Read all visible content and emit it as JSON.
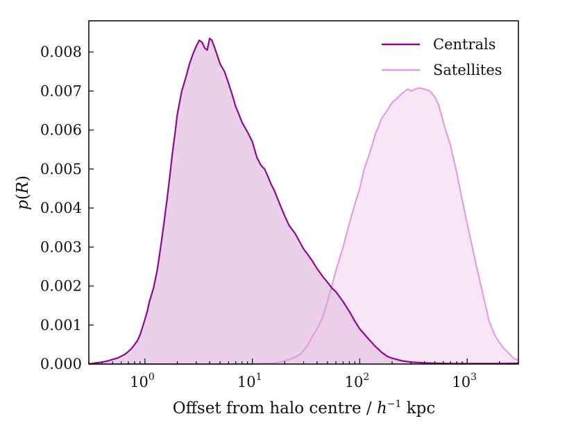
{
  "chart_data": {
    "type": "area",
    "xscale": "log",
    "xlim": [
      0.3,
      3000
    ],
    "ylim": [
      0,
      0.0088
    ],
    "xlabel": "Offset from halo centre / h⁻¹ kpc",
    "xlabel_parts": {
      "prefix": "Offset from halo centre / ",
      "var": "h",
      "exp": "−1",
      "suffix": " kpc"
    },
    "ylabel": "p(R)",
    "ylabel_parts": {
      "p": "p",
      "open": "(",
      "var": "R",
      "close": ")"
    },
    "yticks": [
      {
        "value": 0.0,
        "label": "0.000"
      },
      {
        "value": 0.001,
        "label": "0.001"
      },
      {
        "value": 0.002,
        "label": "0.002"
      },
      {
        "value": 0.003,
        "label": "0.003"
      },
      {
        "value": 0.004,
        "label": "0.004"
      },
      {
        "value": 0.005,
        "label": "0.005"
      },
      {
        "value": 0.006,
        "label": "0.006"
      },
      {
        "value": 0.007,
        "label": "0.007"
      },
      {
        "value": 0.008,
        "label": "0.008"
      }
    ],
    "xticks": [
      {
        "value": 1,
        "base": "10",
        "exp": "0"
      },
      {
        "value": 10,
        "base": "10",
        "exp": "1"
      },
      {
        "value": 100,
        "base": "10",
        "exp": "2"
      },
      {
        "value": 1000,
        "base": "10",
        "exp": "3"
      }
    ],
    "legend_position": "top-right",
    "series": [
      {
        "name": "Centrals",
        "color": "#8b0a8b",
        "fill": "#e8c8e5",
        "x": [
          0.3,
          0.35,
          0.4,
          0.45,
          0.5,
          0.55,
          0.6,
          0.65,
          0.7,
          0.75,
          0.8,
          0.85,
          0.9,
          0.95,
          1.0,
          1.05,
          1.1,
          1.2,
          1.3,
          1.4,
          1.5,
          1.6,
          1.7,
          1.8,
          1.9,
          2.0,
          2.2,
          2.4,
          2.6,
          2.8,
          3.0,
          3.2,
          3.4,
          3.6,
          3.8,
          4.0,
          4.2,
          4.4,
          4.6,
          5.0,
          5.5,
          6.0,
          6.5,
          7.0,
          7.5,
          8.0,
          9.0,
          10,
          11,
          12,
          13,
          14,
          15,
          16,
          18,
          20,
          22,
          25,
          28,
          30,
          33,
          36,
          40,
          45,
          50,
          55,
          60,
          70,
          80,
          90,
          100,
          120,
          140,
          160,
          180,
          200,
          250,
          300,
          400,
          500,
          700,
          1000,
          1500,
          2000,
          3000
        ],
        "y": [
          0.0,
          3e-05,
          5e-05,
          8e-05,
          0.00012,
          0.00015,
          0.0002,
          0.00025,
          0.00032,
          0.0004,
          0.0005,
          0.0006,
          0.00075,
          0.00095,
          0.00115,
          0.00135,
          0.0016,
          0.00195,
          0.0024,
          0.003,
          0.0036,
          0.0042,
          0.0048,
          0.0054,
          0.0059,
          0.0064,
          0.007,
          0.00735,
          0.0077,
          0.00795,
          0.00815,
          0.0083,
          0.00825,
          0.0081,
          0.00805,
          0.00835,
          0.0083,
          0.00815,
          0.008,
          0.0077,
          0.0075,
          0.0072,
          0.0069,
          0.0066,
          0.0064,
          0.0062,
          0.00595,
          0.0057,
          0.0053,
          0.0051,
          0.005,
          0.0048,
          0.0046,
          0.00445,
          0.0041,
          0.0038,
          0.00355,
          0.00335,
          0.0031,
          0.00295,
          0.0028,
          0.00265,
          0.00245,
          0.00225,
          0.0021,
          0.00195,
          0.00185,
          0.0016,
          0.00135,
          0.0011,
          0.0009,
          0.00065,
          0.00045,
          0.0003,
          0.0002,
          0.00015,
          8e-05,
          5e-05,
          3e-05,
          2e-05,
          1e-05,
          1e-05,
          1e-05,
          1e-05,
          2e-05
        ]
      },
      {
        "name": "Satellites",
        "color": "#e09ee0",
        "fill": "#f8e6f6",
        "x": [
          0.3,
          10,
          15,
          18,
          20,
          22,
          25,
          28,
          30,
          33,
          36,
          40,
          45,
          50,
          55,
          60,
          70,
          80,
          90,
          100,
          110,
          120,
          130,
          140,
          150,
          160,
          180,
          200,
          220,
          250,
          280,
          300,
          330,
          360,
          400,
          450,
          500,
          550,
          600,
          700,
          800,
          900,
          1000,
          1200,
          1400,
          1600,
          1800,
          2000,
          2200,
          2500,
          2700,
          3000
        ],
        "y": [
          0.0,
          0.0,
          2e-05,
          5e-05,
          8e-05,
          0.00012,
          0.00018,
          0.00025,
          0.00035,
          0.0005,
          0.0007,
          0.0009,
          0.0012,
          0.0016,
          0.002,
          0.0024,
          0.003,
          0.0036,
          0.0041,
          0.0045,
          0.005,
          0.0053,
          0.0056,
          0.0059,
          0.0061,
          0.0063,
          0.0065,
          0.0067,
          0.0068,
          0.00695,
          0.00705,
          0.007,
          0.00705,
          0.00708,
          0.00705,
          0.007,
          0.00685,
          0.0066,
          0.0062,
          0.0056,
          0.0049,
          0.0042,
          0.0036,
          0.0026,
          0.0018,
          0.0011,
          0.00075,
          0.00055,
          0.0004,
          0.00025,
          0.00015,
          0.0001
        ]
      }
    ]
  }
}
